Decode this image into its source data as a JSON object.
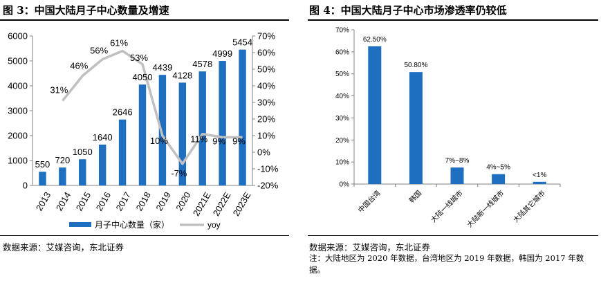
{
  "left": {
    "title": "图 3：中国大陆月子中心数量及增速",
    "source": "数据来源：艾媒咨询，东北证券"
  },
  "right": {
    "title": "图 4：中国大陆月子中心市场渗透率仍较低",
    "source": "数据来源：艾媒咨询，东北证券",
    "note": "注：大陆地区为 2020 年数据，台湾地区为 2019 年数据，韩国为 2017 年数据。"
  },
  "chart_data": [
    {
      "type": "bar",
      "categories": [
        "2013",
        "2014",
        "2015",
        "2016",
        "2017",
        "2018",
        "2019",
        "2020",
        "2021E",
        "2022E",
        "2023E"
      ],
      "series": [
        {
          "name": "月子中心数量（家）",
          "type": "bar",
          "axis": "left",
          "values": [
            550,
            720,
            1050,
            1640,
            2646,
            4050,
            4439,
            4128,
            4578,
            4999,
            5454
          ],
          "labels": [
            "550",
            "720",
            "1050",
            "1640",
            "2646",
            "4050",
            "4439",
            "4128",
            "4578",
            "4999",
            "5454"
          ]
        },
        {
          "name": "yoy",
          "type": "line",
          "axis": "right",
          "values": [
            null,
            31,
            46,
            56,
            61,
            53,
            10,
            -7,
            11,
            9,
            9
          ],
          "labels": [
            "",
            "31%",
            "46%",
            "56%",
            "61%",
            "53%",
            "10%",
            "-7%",
            "11%",
            "9%",
            "9%"
          ]
        }
      ],
      "ylim": [
        0,
        6000
      ],
      "yticks": [
        "0",
        "1000",
        "2000",
        "3000",
        "4000",
        "5000",
        "6000"
      ],
      "y2lim": [
        -20,
        70
      ],
      "y2ticks": [
        "-20%",
        "-10%",
        "0%",
        "10%",
        "20%",
        "30%",
        "40%",
        "50%",
        "60%",
        "70%"
      ],
      "legend": "bottom",
      "colors": {
        "bar": "#1f6fc1",
        "line": "#c0c0c0"
      }
    },
    {
      "type": "bar",
      "categories": [
        "中国台湾",
        "韩国",
        "大陆一线城市",
        "大陆新一线城市",
        "大陆其它城市"
      ],
      "values": [
        62.5,
        50.8,
        7.5,
        4.5,
        1
      ],
      "labels": [
        "62.50%",
        "50.80%",
        "7%~8%",
        "4%~5%",
        "<1%"
      ],
      "ylim": [
        0,
        70
      ],
      "yticks": [
        "0%",
        "10%",
        "20%",
        "30%",
        "40%",
        "50%",
        "60%",
        "70%"
      ],
      "colors": {
        "bar": "#1f6fc1"
      }
    }
  ]
}
